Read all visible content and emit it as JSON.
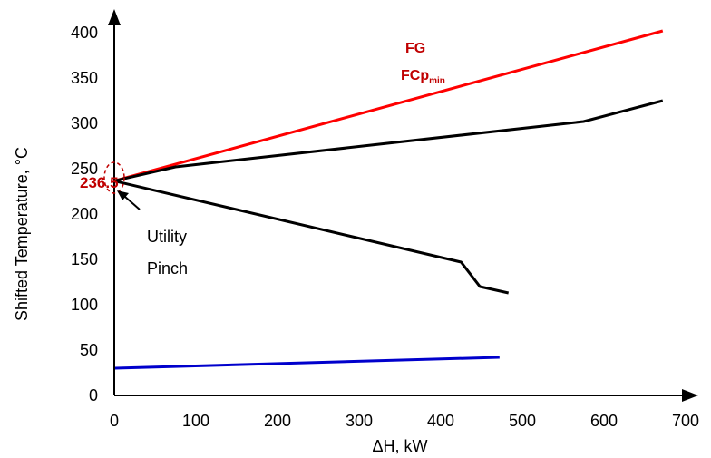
{
  "chart_data": {
    "type": "line",
    "xlabel": "ΔH, kW",
    "ylabel": "Shifted Temperature, °C",
    "xlim": [
      0,
      700
    ],
    "ylim": [
      0,
      400
    ],
    "x_ticks": [
      "0",
      "100",
      "200",
      "300",
      "400",
      "500",
      "600",
      "700"
    ],
    "y_ticks": [
      "0",
      "50",
      "100",
      "150",
      "200",
      "250",
      "300",
      "350",
      "400"
    ],
    "grid": false,
    "series": [
      {
        "color": "#ff0000",
        "points": [
          [
            0,
            236.5
          ],
          [
            672,
            402
          ]
        ]
      },
      {
        "color": "#000000",
        "points": [
          [
            0,
            236.5
          ],
          [
            75,
            252
          ],
          [
            575,
            302
          ],
          [
            672,
            325
          ]
        ]
      },
      {
        "color": "#000000",
        "points": [
          [
            0,
            236.5
          ],
          [
            425,
            147
          ],
          [
            448,
            120
          ],
          [
            483,
            113
          ]
        ]
      },
      {
        "color": "#0000cc",
        "points": [
          [
            0,
            30
          ],
          [
            472,
            42
          ]
        ]
      }
    ],
    "annotations": {
      "fg_label": "FG",
      "fcp_main": "FCp",
      "fcp_sub": "min",
      "pinch_value": "236.5",
      "pinch_y": 236.5,
      "utility_line1": "Utility",
      "utility_line2": "Pinch"
    }
  }
}
